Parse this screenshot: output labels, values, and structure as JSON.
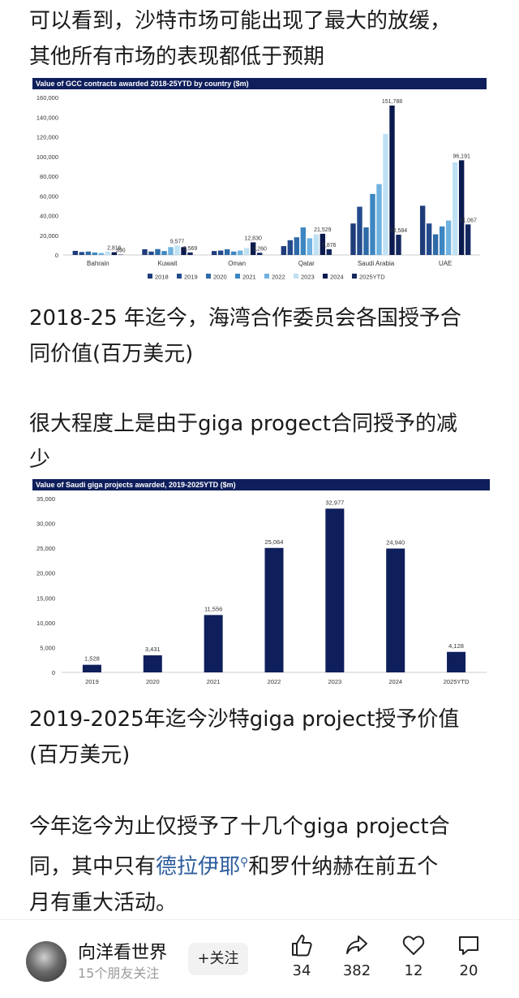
{
  "article": {
    "p1_line1": "可以看到，沙特市场可能出现了最大的放缓，",
    "p1_line2": "其他所有市场的表现都低于预期",
    "p2_line1": "2018-25 年迄今，海湾合作委员会各国授予合",
    "p2_line2": "同价值(百万美元)",
    "p3_line1": "很大程度上是由于giga progect合同授予的减",
    "p3_line2": "少",
    "p4_line1": "2019-2025年迄今沙特giga project授予价值",
    "p4_line2": "(百万美元)",
    "p5_line1": "今年迄今为止仅授予了十几个giga project合",
    "p5_line2_pre": "同，其中只有",
    "p5_link": "德拉伊耶",
    "p5_line2_post": "和罗什纳赫在前五个",
    "p5_line3": "月有重大活动。"
  },
  "colors": {
    "navy": "#0f1f5c",
    "link": "#2c5c9c",
    "series": [
      "#1f3c7a",
      "#234a8c",
      "#2e6aa8",
      "#3c86c2",
      "#6fb2e0",
      "#bfe1f4",
      "#0b1a4d",
      "#14285f"
    ]
  },
  "chart_data": [
    {
      "type": "bar",
      "title": "Value of GCC contracts awarded 2018-25YTD by country ($m)",
      "categories": [
        "Bahrain",
        "Kuwait",
        "Oman",
        "Qatar",
        "Saudi Arabia",
        "UAE"
      ],
      "ylim": [
        0,
        160000
      ],
      "yticks": [
        "0",
        "20,000",
        "40,000",
        "60,000",
        "80,000",
        "100,000",
        "120,000",
        "140,000",
        "160,000"
      ],
      "legend_position": "bottom",
      "series": [
        {
          "name": "2018",
          "values": [
            4200,
            5800,
            4000,
            9000,
            32000,
            50000
          ]
        },
        {
          "name": "2019",
          "values": [
            3000,
            3500,
            4500,
            15000,
            49000,
            32000
          ]
        },
        {
          "name": "2020",
          "values": [
            3500,
            6000,
            5800,
            18000,
            28000,
            21000
          ]
        },
        {
          "name": "2021",
          "values": [
            2500,
            4000,
            3500,
            28000,
            62000,
            29000
          ]
        },
        {
          "name": "2022",
          "values": [
            2000,
            8000,
            4500,
            17000,
            72000,
            35000
          ]
        },
        {
          "name": "2023",
          "values": [
            3500,
            9577,
            7000,
            21000,
            123000,
            94000
          ]
        },
        {
          "name": "2024",
          "values": [
            2816,
            8000,
            12830,
            21529,
            151788,
            96191
          ]
        },
        {
          "name": "2025YTD",
          "values": [
            390,
            2569,
            2260,
            5876,
            20584,
            31067
          ]
        }
      ],
      "data_labels": [
        {
          "category": 0,
          "series": 6,
          "text": "2,816"
        },
        {
          "category": 0,
          "series": 7,
          "text": "390"
        },
        {
          "category": 1,
          "series": 5,
          "text": "9,577"
        },
        {
          "category": 1,
          "series": 7,
          "text": "2,569"
        },
        {
          "category": 2,
          "series": 6,
          "text": "12,830"
        },
        {
          "category": 2,
          "series": 7,
          "text": "2,260"
        },
        {
          "category": 3,
          "series": 6,
          "text": "21,529"
        },
        {
          "category": 3,
          "series": 7,
          "text": "5,876"
        },
        {
          "category": 4,
          "series": 6,
          "text": "151,788"
        },
        {
          "category": 4,
          "series": 7,
          "text": "20,584"
        },
        {
          "category": 5,
          "series": 6,
          "text": "96,191"
        },
        {
          "category": 5,
          "series": 7,
          "text": "31,067"
        }
      ]
    },
    {
      "type": "bar",
      "title": "Value of Saudi giga projects awarded, 2019-2025YTD ($m)",
      "categories": [
        "2019",
        "2020",
        "2021",
        "2022",
        "2023",
        "2024",
        "2025YTD"
      ],
      "values": [
        1528,
        3431,
        11556,
        25064,
        32977,
        24940,
        4128
      ],
      "labels": [
        "1,528",
        "3,431",
        "11,556",
        "25,064",
        "32,977",
        "24,940",
        "4,128"
      ],
      "ylim": [
        0,
        35000
      ],
      "yticks": [
        "0",
        "5,000",
        "10,000",
        "15,000",
        "20,000",
        "25,000",
        "30,000",
        "35,000"
      ]
    }
  ],
  "footer": {
    "author": "向洋看世界",
    "friends": "15个朋友关注",
    "follow": "+关注",
    "likes": "34",
    "shares": "382",
    "favorites": "12",
    "comments": "20"
  }
}
